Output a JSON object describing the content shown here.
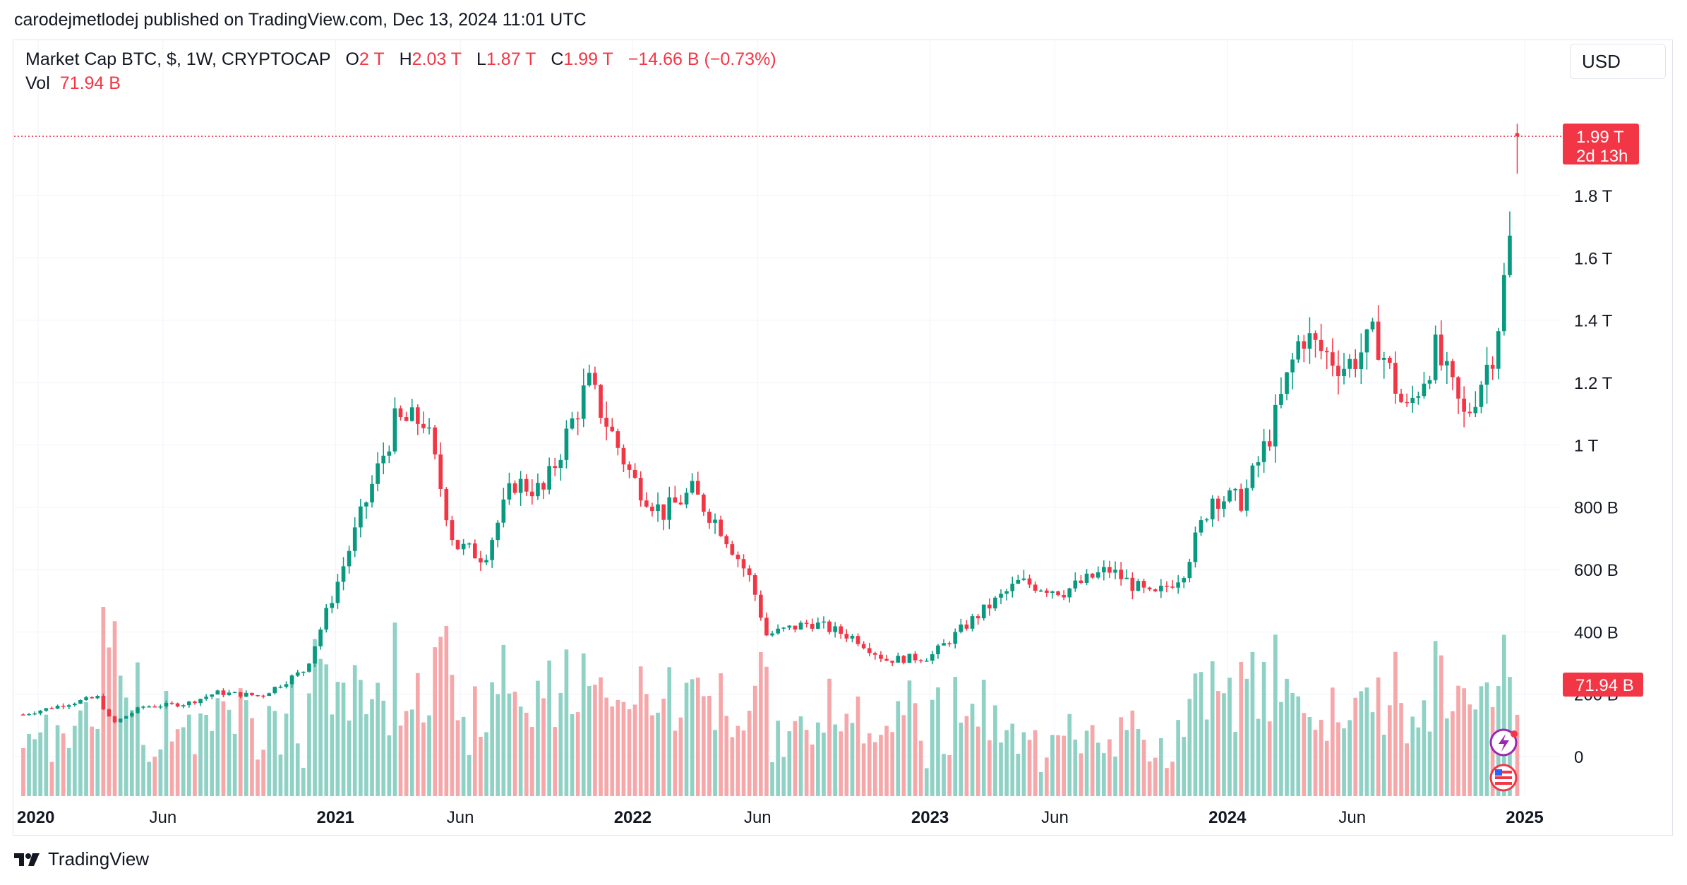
{
  "publisher_line": "carodejmetlodej published on TradingView.com, Dec 13, 2024 11:01 UTC",
  "legend": {
    "symbol": "Market Cap BTC, $, 1W, CRYPTOCAP",
    "open_label": "O",
    "open": "2 T",
    "high_label": "H",
    "high": "2.03 T",
    "low_label": "L",
    "low": "1.87 T",
    "close_label": "C",
    "close": "1.99 T",
    "change": "−14.66 B (−0.73%)",
    "vol_label": "Vol",
    "vol": "71.94 B"
  },
  "currency_button": "USD",
  "price_tag": {
    "price": "1.99 T",
    "countdown": "2d 13h"
  },
  "volume_tag": "71.94 B",
  "brand": "TradingView",
  "colors": {
    "up": "#089981",
    "down": "#f23645",
    "up_vol": "#8fd1c4",
    "down_vol": "#f5a7a9",
    "grid": "#f0f3fa"
  },
  "chart_data": {
    "type": "candlestick",
    "title": "Market Cap BTC, $, 1W, CRYPTOCAP",
    "y_unit": "USD",
    "y_ticks": [
      "0",
      "200 B",
      "400 B",
      "600 B",
      "800 B",
      "1 T",
      "1.2 T",
      "1.4 T",
      "1.6 T",
      "1.8 T"
    ],
    "y_tick_values": [
      0,
      200,
      400,
      600,
      800,
      1000,
      1200,
      1400,
      1600,
      1800
    ],
    "x_ticks": [
      {
        "label": "2020",
        "year": true,
        "t": 2020.0
      },
      {
        "label": "Jun",
        "year": false,
        "t": 2020.42
      },
      {
        "label": "2021",
        "year": true,
        "t": 2021.0
      },
      {
        "label": "Jun",
        "year": false,
        "t": 2021.42
      },
      {
        "label": "2022",
        "year": true,
        "t": 2022.0
      },
      {
        "label": "Jun",
        "year": false,
        "t": 2022.42
      },
      {
        "label": "2023",
        "year": true,
        "t": 2023.0
      },
      {
        "label": "Jun",
        "year": false,
        "t": 2023.42
      },
      {
        "label": "2024",
        "year": true,
        "t": 2024.0
      },
      {
        "label": "Jun",
        "year": false,
        "t": 2024.42
      },
      {
        "label": "2025",
        "year": true,
        "t": 2025.0
      }
    ],
    "x_range": [
      1998.99,
      2025.06
    ],
    "y_range_billions": [
      -125,
      2070
    ],
    "last_price_billions": 1990,
    "close_path_billions": [
      [
        2019.95,
        135
      ],
      [
        2020.1,
        170
      ],
      [
        2020.2,
        190
      ],
      [
        2020.25,
        105
      ],
      [
        2020.35,
        160
      ],
      [
        2020.5,
        170
      ],
      [
        2020.6,
        205
      ],
      [
        2020.75,
        195
      ],
      [
        2020.9,
        280
      ],
      [
        2021.0,
        540
      ],
      [
        2021.1,
        810
      ],
      [
        2021.2,
        1070
      ],
      [
        2021.3,
        1080
      ],
      [
        2021.4,
        680
      ],
      [
        2021.5,
        640
      ],
      [
        2021.6,
        880
      ],
      [
        2021.7,
        850
      ],
      [
        2021.85,
        1200
      ],
      [
        2022.0,
        890
      ],
      [
        2022.1,
        780
      ],
      [
        2022.2,
        850
      ],
      [
        2022.3,
        730
      ],
      [
        2022.4,
        560
      ],
      [
        2022.45,
        390
      ],
      [
        2022.6,
        430
      ],
      [
        2022.75,
        380
      ],
      [
        2022.85,
        310
      ],
      [
        2023.0,
        320
      ],
      [
        2023.15,
        445
      ],
      [
        2023.3,
        560
      ],
      [
        2023.45,
        530
      ],
      [
        2023.6,
        600
      ],
      [
        2023.75,
        510
      ],
      [
        2023.85,
        590
      ],
      [
        2023.95,
        835
      ],
      [
        2024.05,
        820
      ],
      [
        2024.15,
        1050
      ],
      [
        2024.25,
        1360
      ],
      [
        2024.3,
        1310
      ],
      [
        2024.4,
        1250
      ],
      [
        2024.5,
        1350
      ],
      [
        2024.6,
        1100
      ],
      [
        2024.7,
        1300
      ],
      [
        2024.8,
        1080
      ],
      [
        2024.9,
        1320
      ],
      [
        2024.95,
        1650
      ],
      [
        2025.0,
        1980
      ]
    ],
    "volume_note": "volume bars shown bottom, last volume 71.94 B"
  }
}
